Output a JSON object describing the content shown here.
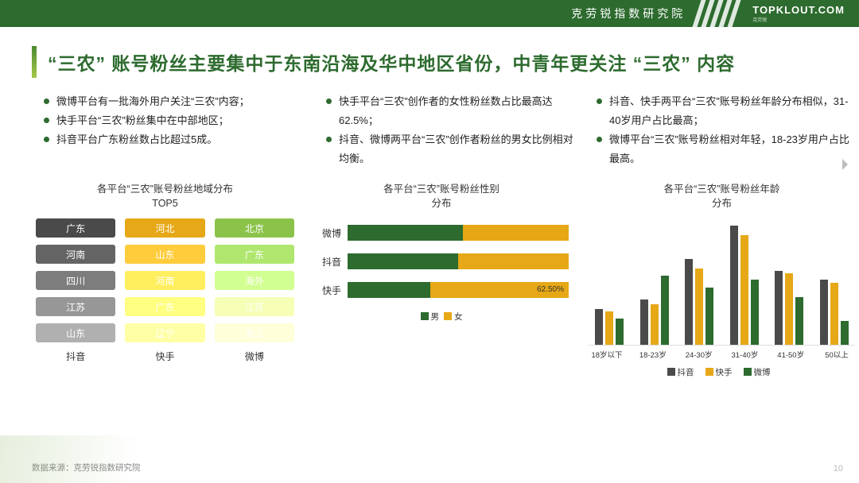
{
  "header": {
    "institute": "克劳锐指数研究院",
    "logo_main": "TOPKLOUT.COM",
    "logo_sub": "克劳锐"
  },
  "headline": "“三农” 账号粉丝主要集中于东南沿海及华中地区省份，中青年更关注 “三农” 内容",
  "bullets": {
    "col1": [
      "微博平台有一批海外用户关注“三农”内容；",
      "快手平台“三农”粉丝集中在中部地区；",
      "抖音平台广东粉丝数占比超过5成。"
    ],
    "col2": [
      "快手平台“三农”创作者的女性粉丝数占比最高达62.5%；",
      "抖音、微博两平台“三农”创作者粉丝的男女比例相对均衡。"
    ],
    "col3": [
      "抖音、快手两平台“三农”账号粉丝年龄分布相似，31-40岁用户占比最高；",
      "微博平台“三农”账号粉丝相对年轻，18-23岁用户占比最高。"
    ]
  },
  "chart1": {
    "title_l1": "各平台“三农”账号粉丝地域分布",
    "title_l2": "TOP5",
    "columns": [
      "抖音",
      "快手",
      "微博"
    ],
    "col_colors": [
      "#4a4a4a",
      "#e6a817",
      "#8bc34a"
    ],
    "col_shade_step": [
      0,
      0.14,
      0.14
    ],
    "rows": [
      [
        "广东",
        "河北",
        "北京"
      ],
      [
        "河南",
        "山东",
        "广东"
      ],
      [
        "四川",
        "河南",
        "海外"
      ],
      [
        "江苏",
        "广东",
        "江苏"
      ],
      [
        "山东",
        "辽宁",
        "浙江"
      ]
    ]
  },
  "chart2": {
    "title_l1": "各平台“三农”账号粉丝性别",
    "title_l2": "分布",
    "series_labels": [
      "男",
      "女"
    ],
    "series_colors": [
      "#2d6b2e",
      "#e6a817"
    ],
    "rows": [
      {
        "label": "微博",
        "male": 52,
        "female": 48,
        "anno": ""
      },
      {
        "label": "抖音",
        "male": 50,
        "female": 50,
        "anno": ""
      },
      {
        "label": "快手",
        "male": 37.5,
        "female": 62.5,
        "anno": "62.50%"
      }
    ]
  },
  "chart3": {
    "title_l1": "各平台“三农”账号粉丝年龄",
    "title_l2": "分布",
    "categories": [
      "18岁以下",
      "18-23岁",
      "24-30岁",
      "31-40岁",
      "41-50岁",
      "50以上"
    ],
    "series": [
      {
        "name": "抖音",
        "color": "#4a4a4a",
        "values": [
          30,
          38,
          72,
          100,
          62,
          55
        ]
      },
      {
        "name": "快手",
        "color": "#e6a817",
        "values": [
          28,
          34,
          64,
          92,
          60,
          52
        ]
      },
      {
        "name": "微博",
        "color": "#2d6b2e",
        "values": [
          22,
          58,
          48,
          55,
          40,
          20
        ]
      }
    ],
    "ymax": 100
  },
  "footer": {
    "source": "数据来源：克劳锐指数研究院",
    "page": "10"
  },
  "style": {
    "brand_green": "#2d6b2e",
    "accent_yellow": "#e6a817",
    "bg": "#ffffff"
  }
}
